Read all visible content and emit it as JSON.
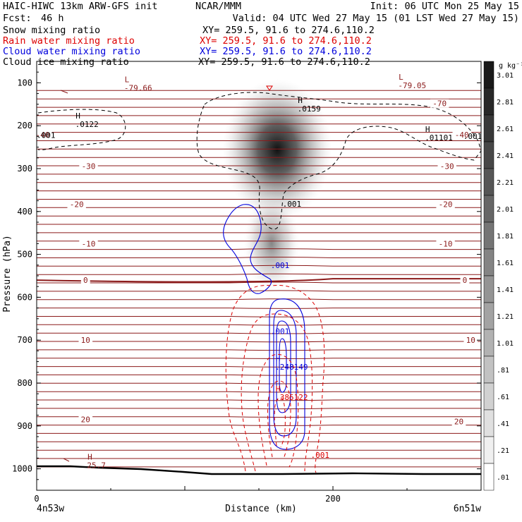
{
  "header": {
    "title": "HAIC-HIWC 13km ARW-GFS init",
    "org": "NCAR/MMM",
    "init": "Init: 06 UTC Mon 25 May 15",
    "fcst_label": "Fcst:",
    "fcst_value": "46 h",
    "valid": "Valid: 04 UTC Wed 27 May 15 (01 LST Wed 27 May 15)"
  },
  "legend": [
    {
      "label": "Snow mixing ratio",
      "xy": "XY= 259.5, 91.6 to 274.6,110.2",
      "color": "#000000"
    },
    {
      "label": "Rain water mixing ratio",
      "xy": "XY= 259.5, 91.6 to 274.6,110.2",
      "color": "#dd0000"
    },
    {
      "label": "Cloud water mixing ratio",
      "xy": "XY= 259.5, 91.6 to 274.6,110.2",
      "color": "#0000dd"
    },
    {
      "label": "Cloud ice mixing ratio",
      "xy": "XY= 259.5, 91.6 to 274.6,110.2",
      "color": "#000000"
    }
  ],
  "chart_data": {
    "type": "contour",
    "xlabel": "Distance (km)",
    "ylabel": "Pressure (hPa)",
    "xlim": [
      0,
      300
    ],
    "ylim": [
      1050,
      50
    ],
    "x_ticks": [
      0,
      200
    ],
    "y_ticks": [
      100,
      200,
      300,
      400,
      500,
      600,
      700,
      800,
      900,
      1000
    ],
    "x_endpoints": {
      "left": "4n53w",
      "right": "6n51w"
    },
    "temperature_contours": [
      {
        "label": "-70",
        "x": 272,
        "p": 148
      },
      {
        "label": "-40",
        "x": 287,
        "p": 221
      },
      {
        "label": "-40",
        "x": 4,
        "p": 221
      },
      {
        "label": "-30",
        "x": 35,
        "p": 294
      },
      {
        "label": "-30",
        "x": 277,
        "p": 294
      },
      {
        "label": "-20",
        "x": 27,
        "p": 383
      },
      {
        "label": "-20",
        "x": 276,
        "p": 383
      },
      {
        "label": "-10",
        "x": 35,
        "p": 475
      },
      {
        "label": "-10",
        "x": 276,
        "p": 475
      },
      {
        "label": "0",
        "x": 33,
        "p": 560
      },
      {
        "label": "0",
        "x": 289,
        "p": 560
      },
      {
        "label": "10",
        "x": 33,
        "p": 700
      },
      {
        "label": "10",
        "x": 293,
        "p": 700
      },
      {
        "label": "20",
        "x": 33,
        "p": 885
      },
      {
        "label": "20",
        "x": 285,
        "p": 890
      }
    ],
    "annotations": [
      {
        "kind": "L",
        "value": "-79.66",
        "x": 59,
        "p": 112,
        "color": "#8b1a1a"
      },
      {
        "kind": "L",
        "value": "-79.05",
        "x": 244,
        "p": 106,
        "color": "#8b1a1a"
      },
      {
        "kind": "H",
        "value": "25.7",
        "x": 34,
        "p": 992,
        "color": "#8b1a1a"
      },
      {
        "kind": "H",
        "value": ".0159",
        "x": 176,
        "p": 160,
        "color": "#000000"
      },
      {
        "kind": "H",
        "value": ".0122",
        "x": 26,
        "p": 196,
        "color": "#000000"
      },
      {
        "kind": "H",
        "value": ".01101",
        "x": 262,
        "p": 228,
        "color": "#000000"
      },
      {
        "kind": "label",
        "value": ".001",
        "x": 288,
        "p": 224,
        "color": "#000000"
      },
      {
        "kind": "label",
        "value": ".001",
        "x": 0,
        "p": 222,
        "color": "#000000"
      },
      {
        "kind": "label",
        "value": ".001",
        "x": 166,
        "p": 382,
        "color": "#000000"
      },
      {
        "kind": "label",
        "value": ".001",
        "x": 158,
        "p": 525,
        "color": "#0000dd"
      },
      {
        "kind": "label",
        "value": ".001",
        "x": 158,
        "p": 679,
        "color": "#0000dd"
      },
      {
        "kind": "H",
        "value": ".248149",
        "x": 161,
        "p": 762,
        "color": "#0000dd"
      },
      {
        "kind": "H",
        "value": ".385122",
        "x": 161,
        "p": 833,
        "color": "#dd0000"
      },
      {
        "kind": "label",
        "value": ".001",
        "x": 185,
        "p": 968,
        "color": "#dd0000"
      }
    ],
    "colorbar": {
      "unit": "g kg⁻¹",
      "levels": [
        "3.01",
        "2.81",
        "2.61",
        "2.41",
        "2.21",
        "2.01",
        "1.81",
        "1.61",
        "1.41",
        "1.21",
        "1.01",
        ".81",
        ".61",
        ".41",
        ".21",
        ".01"
      ]
    }
  },
  "colors": {
    "temperature": "#8b1a1a",
    "rain": "#dd0000",
    "cloud_water": "#0000dd",
    "snow_shade": "#000000"
  }
}
